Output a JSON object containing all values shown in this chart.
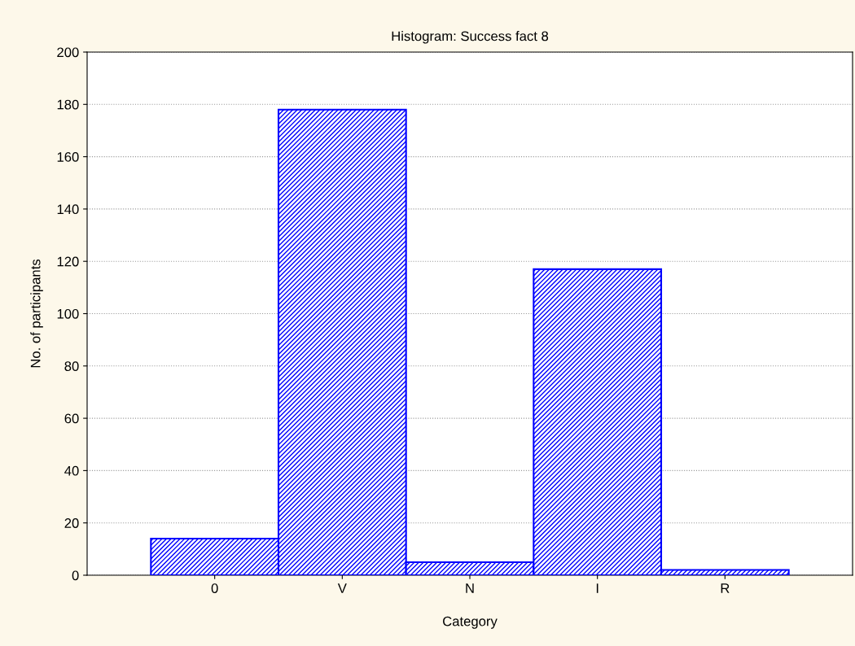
{
  "chart_data": {
    "type": "bar",
    "title": "Histogram: Success fact 8",
    "xlabel": "Category",
    "ylabel": "No. of participants",
    "categories": [
      "0",
      "V",
      "N",
      "I",
      "R"
    ],
    "values": [
      14,
      178,
      5,
      117,
      2
    ],
    "color": "#0000ff",
    "ylim": [
      0,
      200
    ],
    "yticks": [
      0,
      20,
      40,
      60,
      80,
      100,
      120,
      140,
      160,
      180,
      200
    ],
    "grid": "y"
  }
}
